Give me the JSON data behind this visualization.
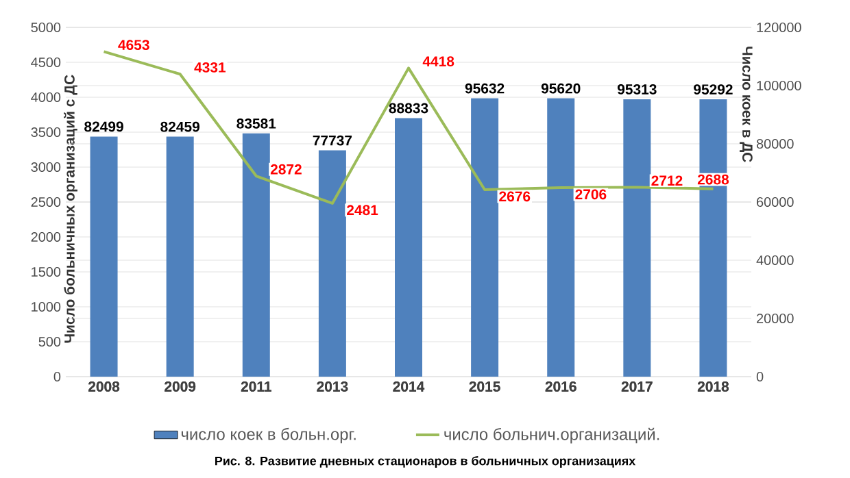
{
  "chart_data": {
    "type": "bar",
    "categories": [
      "2008",
      "2009",
      "2011",
      "2013",
      "2014",
      "2015",
      "2016",
      "2017",
      "2018"
    ],
    "series": [
      {
        "name": "число коек в больн.орг.",
        "axis": "y2",
        "color": "#4f81bd",
        "values": [
          82499,
          82459,
          83581,
          77737,
          88833,
          95632,
          95620,
          95313,
          95292
        ]
      },
      {
        "name": "число больнич.организаций.",
        "type": "line",
        "axis": "y",
        "color": "#9bbb59",
        "values": [
          4653,
          4331,
          2872,
          2481,
          4418,
          2676,
          2706,
          2712,
          2688
        ]
      }
    ],
    "ylabel": "Число больничных организаций с ДС",
    "y2label": "Число коек в ДС",
    "ylim": [
      0,
      5000
    ],
    "yticks": [
      0,
      500,
      1000,
      1500,
      2000,
      2500,
      3000,
      3500,
      4000,
      4500,
      5000
    ],
    "y2lim": [
      0,
      120000
    ],
    "y2ticks": [
      0,
      20000,
      40000,
      60000,
      80000,
      100000,
      120000
    ],
    "grid": "y",
    "legend": "bottom",
    "data_labels": true,
    "marker": "none",
    "annotations": [
      "Рис. 8. Развитие дневных стационаров в больничных организациях"
    ]
  }
}
